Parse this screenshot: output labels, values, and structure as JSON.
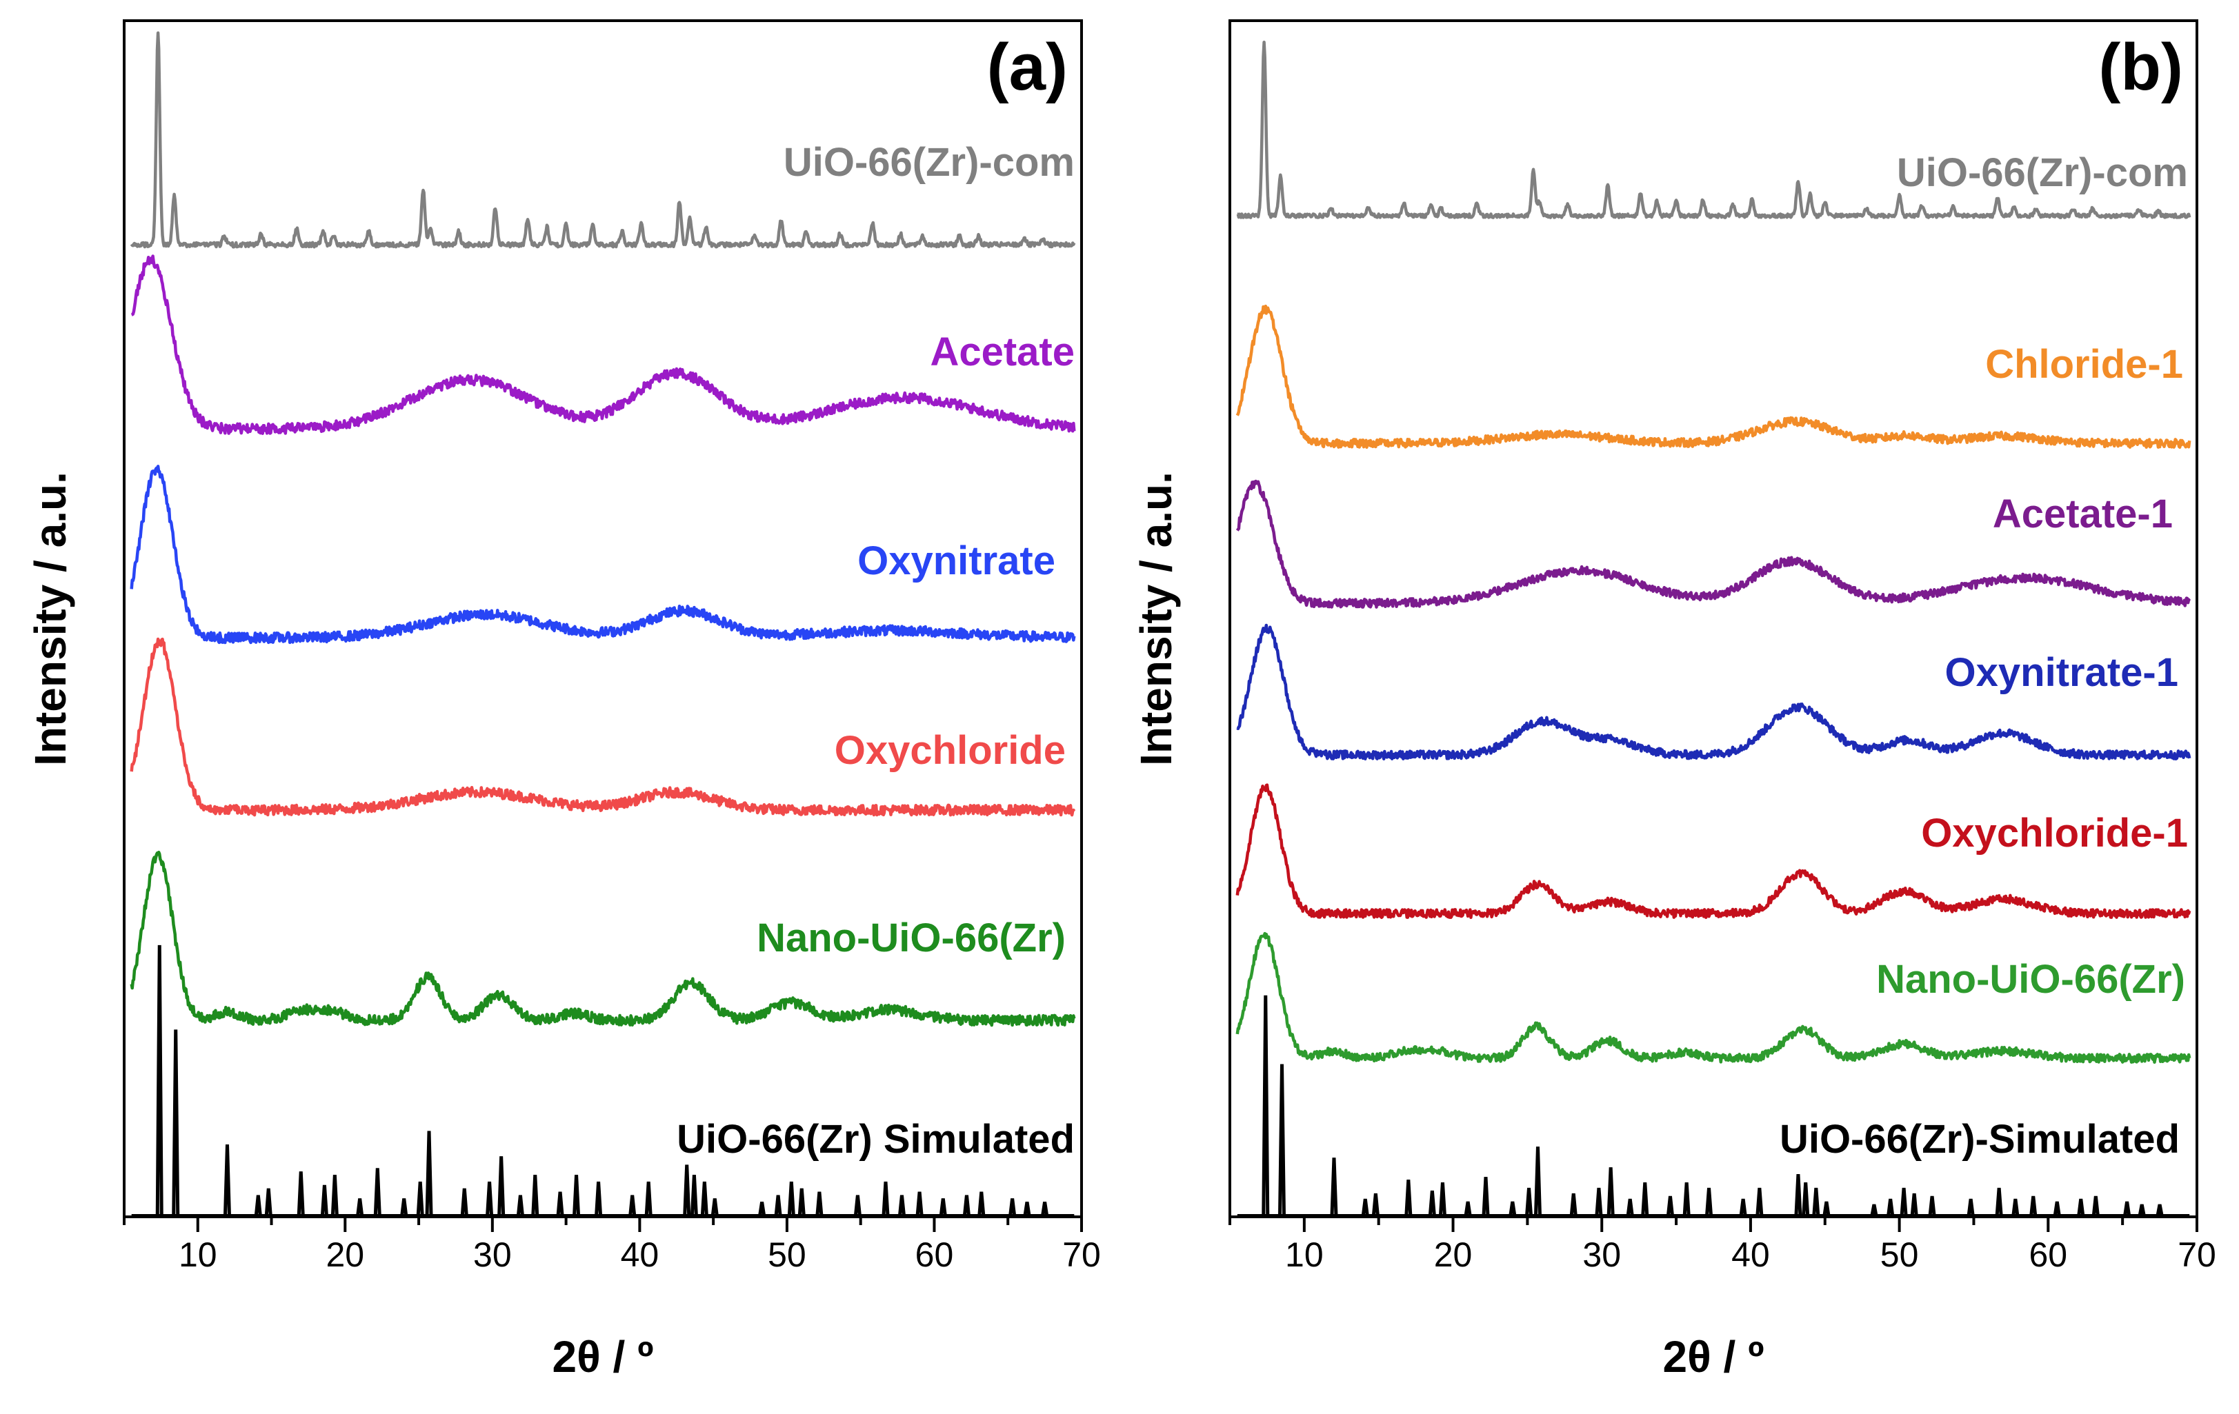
{
  "chart_data": [
    {
      "type": "line",
      "panel_label": "(a)",
      "xlabel": "2θ / º",
      "ylabel": "Intensity / a.u.",
      "xlim": [
        5,
        70
      ],
      "xticks": [
        10,
        20,
        30,
        40,
        50,
        60,
        70
      ],
      "yticks": "none (arbitrary offsets)",
      "series": [
        {
          "name": "UiO-66(Zr)-com",
          "color": "#808080",
          "kind": "peaks",
          "baseline": 0,
          "offset": 5.05,
          "peaks": [
            [
              7.3,
              2.4
            ],
            [
              8.4,
              0.55
            ],
            [
              11.8,
              0.1
            ],
            [
              14.3,
              0.12
            ],
            [
              16.7,
              0.18
            ],
            [
              18.5,
              0.15
            ],
            [
              19.2,
              0.1
            ],
            [
              21.6,
              0.16
            ],
            [
              25.3,
              0.62
            ],
            [
              25.8,
              0.2
            ],
            [
              27.7,
              0.15
            ],
            [
              30.2,
              0.42
            ],
            [
              32.4,
              0.3
            ],
            [
              33.7,
              0.2
            ],
            [
              35.0,
              0.22
            ],
            [
              36.8,
              0.22
            ],
            [
              38.8,
              0.16
            ],
            [
              40.1,
              0.24
            ],
            [
              42.7,
              0.48
            ],
            [
              43.4,
              0.3
            ],
            [
              44.5,
              0.2
            ],
            [
              47.8,
              0.1
            ],
            [
              49.6,
              0.28
            ],
            [
              51.3,
              0.14
            ],
            [
              53.6,
              0.12
            ],
            [
              55.8,
              0.25
            ],
            [
              57.7,
              0.12
            ],
            [
              59.2,
              0.1
            ],
            [
              61.7,
              0.1
            ],
            [
              63.0,
              0.1
            ],
            [
              66.1,
              0.08
            ],
            [
              67.4,
              0.06
            ]
          ]
        },
        {
          "name": "Acetate",
          "color": "#9B1BC7",
          "kind": "broad",
          "baseline": 0,
          "offset": 3.95,
          "peaks": [
            [
              6.8,
              1.9,
              1.4
            ],
            [
              28.5,
              0.55,
              4.0
            ],
            [
              42.5,
              0.62,
              2.8
            ],
            [
              58.0,
              0.35,
              5.0
            ]
          ]
        },
        {
          "name": "Oxynitrate",
          "color": "#2845F5",
          "kind": "broad",
          "baseline": 0,
          "offset": 2.85,
          "peaks": [
            [
              7.2,
              1.9,
              1.1
            ],
            [
              29.5,
              0.26,
              4.0
            ],
            [
              43.0,
              0.3,
              2.5
            ],
            [
              57.0,
              0.08,
              5.0
            ]
          ]
        },
        {
          "name": "Oxychloride",
          "color": "#F04A4A",
          "kind": "broad",
          "baseline": 0,
          "offset": 1.75,
          "peaks": [
            [
              7.4,
              1.9,
              1.1
            ],
            [
              29.0,
              0.2,
              4.0
            ],
            [
              42.5,
              0.2,
              2.5
            ]
          ]
        },
        {
          "name": "Nano-UiO-66(Zr)",
          "color": "#1E8C1E",
          "kind": "broad",
          "baseline": 0,
          "offset": 0.65,
          "peaks": [
            [
              7.3,
              1.85,
              1.0
            ],
            [
              12.0,
              0.1,
              0.8
            ],
            [
              17.0,
              0.1,
              1.0
            ],
            [
              19.0,
              0.1,
              1.0
            ],
            [
              25.6,
              0.48,
              0.9
            ],
            [
              30.4,
              0.28,
              1.0
            ],
            [
              35.5,
              0.08,
              1.0
            ],
            [
              43.5,
              0.42,
              1.2
            ],
            [
              50.3,
              0.2,
              1.4
            ],
            [
              57.0,
              0.12,
              2.0
            ]
          ]
        },
        {
          "name": "UiO-66(Zr) Simulated",
          "color": "#000000",
          "kind": "sticks",
          "baseline": 0,
          "offset": -0.35,
          "peaks": [
            [
              7.4,
              1.6
            ],
            [
              8.5,
              1.1
            ],
            [
              12.0,
              0.42
            ],
            [
              14.1,
              0.12
            ],
            [
              14.8,
              0.16
            ],
            [
              17.0,
              0.26
            ],
            [
              18.6,
              0.18
            ],
            [
              19.3,
              0.24
            ],
            [
              21.0,
              0.1
            ],
            [
              22.2,
              0.28
            ],
            [
              24.0,
              0.1
            ],
            [
              25.1,
              0.2
            ],
            [
              25.7,
              0.5
            ],
            [
              28.1,
              0.16
            ],
            [
              29.8,
              0.2
            ],
            [
              30.6,
              0.35
            ],
            [
              31.9,
              0.12
            ],
            [
              32.9,
              0.24
            ],
            [
              34.6,
              0.14
            ],
            [
              35.7,
              0.24
            ],
            [
              37.2,
              0.2
            ],
            [
              39.5,
              0.12
            ],
            [
              40.6,
              0.2
            ],
            [
              43.2,
              0.3
            ],
            [
              43.7,
              0.24
            ],
            [
              44.4,
              0.2
            ],
            [
              45.1,
              0.1
            ],
            [
              48.3,
              0.08
            ],
            [
              49.4,
              0.12
            ],
            [
              50.3,
              0.2
            ],
            [
              51.0,
              0.16
            ],
            [
              52.2,
              0.14
            ],
            [
              54.8,
              0.12
            ],
            [
              56.7,
              0.2
            ],
            [
              57.8,
              0.12
            ],
            [
              59.0,
              0.14
            ],
            [
              60.6,
              0.1
            ],
            [
              62.2,
              0.12
            ],
            [
              63.2,
              0.14
            ],
            [
              65.3,
              0.1
            ],
            [
              66.3,
              0.08
            ],
            [
              67.5,
              0.08
            ]
          ]
        }
      ],
      "labels": [
        "UiO-66(Zr)-com",
        "Acetate",
        "Oxynitrate",
        "Oxychloride",
        "Nano-UiO-66(Zr)",
        "UiO-66(Zr) Simulated"
      ]
    },
    {
      "type": "line",
      "panel_label": "(b)",
      "xlabel": "2θ / º",
      "ylabel": "Intensity / a.u.",
      "xlim": [
        5,
        70
      ],
      "xticks": [
        10,
        20,
        30,
        40,
        50,
        60,
        70
      ],
      "yticks": "none (arbitrary offsets)",
      "series": [
        {
          "name": "UiO-66(Zr)-com",
          "color": "#808080",
          "kind": "peaks",
          "baseline": 0,
          "offset": 5.05,
          "peaks": [
            [
              7.3,
              2.4
            ],
            [
              8.4,
              0.55
            ],
            [
              11.8,
              0.1
            ],
            [
              14.3,
              0.12
            ],
            [
              16.7,
              0.18
            ],
            [
              18.5,
              0.15
            ],
            [
              19.2,
              0.1
            ],
            [
              21.6,
              0.16
            ],
            [
              25.4,
              0.62
            ],
            [
              25.8,
              0.2
            ],
            [
              27.7,
              0.15
            ],
            [
              30.4,
              0.42
            ],
            [
              32.6,
              0.3
            ],
            [
              33.7,
              0.2
            ],
            [
              35.0,
              0.22
            ],
            [
              36.8,
              0.22
            ],
            [
              38.8,
              0.16
            ],
            [
              40.1,
              0.24
            ],
            [
              43.2,
              0.48
            ],
            [
              44.0,
              0.3
            ],
            [
              45.0,
              0.2
            ],
            [
              47.8,
              0.1
            ],
            [
              50.0,
              0.28
            ],
            [
              51.5,
              0.14
            ],
            [
              53.6,
              0.12
            ],
            [
              56.6,
              0.25
            ],
            [
              57.7,
              0.12
            ],
            [
              59.2,
              0.1
            ],
            [
              61.7,
              0.1
            ],
            [
              63.0,
              0.1
            ],
            [
              66.1,
              0.08
            ],
            [
              67.4,
              0.06
            ]
          ]
        },
        {
          "name": "Chloride-1",
          "color": "#F28C28",
          "kind": "broad",
          "baseline": 0,
          "offset": 4.05,
          "peaks": [
            [
              7.4,
              1.85,
              1.1
            ],
            [
              27.0,
              0.12,
              3.5
            ],
            [
              43.0,
              0.3,
              2.5
            ],
            [
              50.5,
              0.1,
              1.5
            ],
            [
              57.0,
              0.1,
              2.5
            ]
          ]
        },
        {
          "name": "Acetate-1",
          "color": "#7B1C8E",
          "kind": "broad",
          "baseline": 0,
          "offset": 3.1,
          "peaks": [
            [
              6.7,
              1.65,
              1.2
            ],
            [
              28.5,
              0.45,
              4.0
            ],
            [
              42.8,
              0.58,
              2.6
            ],
            [
              58.5,
              0.35,
              4.5
            ]
          ]
        },
        {
          "name": "Oxynitrate-1",
          "color": "#1E2BB5",
          "kind": "broad",
          "baseline": 0,
          "offset": 2.05,
          "peaks": [
            [
              7.5,
              1.75,
              1.1
            ],
            [
              26.0,
              0.46,
              1.8
            ],
            [
              30.5,
              0.2,
              1.8
            ],
            [
              43.2,
              0.66,
              2.0
            ],
            [
              50.5,
              0.2,
              1.5
            ],
            [
              57.0,
              0.3,
              2.0
            ]
          ]
        },
        {
          "name": "Oxychloride-1",
          "color": "#C4101C",
          "kind": "broad",
          "baseline": 0,
          "offset": 1.05,
          "peaks": [
            [
              7.4,
              1.75,
              1.0
            ],
            [
              25.7,
              0.4,
              1.1
            ],
            [
              30.5,
              0.16,
              1.3
            ],
            [
              43.4,
              0.56,
              1.4
            ],
            [
              50.3,
              0.3,
              1.5
            ],
            [
              57.0,
              0.2,
              2.0
            ]
          ]
        },
        {
          "name": "Nano-UiO-66(Zr)",
          "color": "#2E9B2E",
          "kind": "broad",
          "baseline": 0,
          "offset": 0.2,
          "peaks": [
            [
              7.3,
              1.7,
              1.0
            ],
            [
              12.0,
              0.1,
              0.8
            ],
            [
              17.0,
              0.1,
              1.0
            ],
            [
              19.0,
              0.1,
              1.0
            ],
            [
              25.6,
              0.44,
              0.9
            ],
            [
              30.4,
              0.24,
              1.0
            ],
            [
              35.5,
              0.08,
              1.0
            ],
            [
              43.5,
              0.4,
              1.2
            ],
            [
              50.3,
              0.2,
              1.4
            ],
            [
              57.0,
              0.1,
              2.0
            ]
          ]
        },
        {
          "name": "UiO-66(Zr)-Simulated",
          "color": "#000000",
          "kind": "sticks",
          "baseline": 0,
          "offset": -0.7,
          "peaks": [
            [
              7.4,
              1.6
            ],
            [
              8.5,
              1.1
            ],
            [
              12.0,
              0.42
            ],
            [
              14.1,
              0.12
            ],
            [
              14.8,
              0.16
            ],
            [
              17.0,
              0.26
            ],
            [
              18.6,
              0.18
            ],
            [
              19.3,
              0.24
            ],
            [
              21.0,
              0.1
            ],
            [
              22.2,
              0.28
            ],
            [
              24.0,
              0.1
            ],
            [
              25.1,
              0.2
            ],
            [
              25.7,
              0.5
            ],
            [
              28.1,
              0.16
            ],
            [
              29.8,
              0.2
            ],
            [
              30.6,
              0.35
            ],
            [
              31.9,
              0.12
            ],
            [
              32.9,
              0.24
            ],
            [
              34.6,
              0.14
            ],
            [
              35.7,
              0.24
            ],
            [
              37.2,
              0.2
            ],
            [
              39.5,
              0.12
            ],
            [
              40.6,
              0.2
            ],
            [
              43.2,
              0.3
            ],
            [
              43.7,
              0.24
            ],
            [
              44.4,
              0.2
            ],
            [
              45.1,
              0.1
            ],
            [
              48.3,
              0.08
            ],
            [
              49.4,
              0.12
            ],
            [
              50.3,
              0.2
            ],
            [
              51.0,
              0.16
            ],
            [
              52.2,
              0.14
            ],
            [
              54.8,
              0.12
            ],
            [
              56.7,
              0.2
            ],
            [
              57.8,
              0.12
            ],
            [
              59.0,
              0.14
            ],
            [
              60.6,
              0.1
            ],
            [
              62.2,
              0.12
            ],
            [
              63.2,
              0.14
            ],
            [
              65.3,
              0.1
            ],
            [
              66.3,
              0.08
            ],
            [
              67.5,
              0.08
            ]
          ]
        }
      ],
      "labels": [
        "UiO-66(Zr)-com",
        "Chloride-1",
        "Acetate-1",
        "Oxynitrate-1",
        "Oxychloride-1",
        "Nano-UiO-66(Zr)",
        "UiO-66(Zr)-Simulated"
      ]
    }
  ]
}
